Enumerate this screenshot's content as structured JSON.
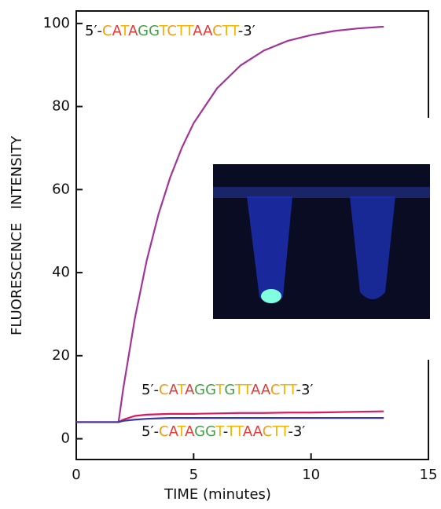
{
  "chart_data": {
    "type": "line",
    "xlabel": "TIME (minutes)",
    "ylabel": "FLUORESCENCE   INTENSITY",
    "x": [
      0,
      0.5,
      1,
      1.5,
      1.8,
      2,
      2.5,
      3,
      3.5,
      4,
      4.5,
      5,
      6,
      7,
      8,
      9,
      10,
      11,
      12,
      13,
      13.1
    ],
    "series": [
      {
        "name": "5′-CATAGGTCTTAACTT-3′",
        "color": "#a0359a",
        "values": [
          4,
          4,
          4,
          4,
          4,
          12,
          29.1,
          42.9,
          54,
          62.9,
          70.1,
          76,
          84.4,
          89.9,
          93.5,
          95.8,
          97.2,
          98.2,
          98.8,
          99.2,
          99.2
        ]
      },
      {
        "name": "5′-CATAGGTGTTAACTT-3′",
        "color": "#d81b60",
        "values": [
          4,
          4,
          4,
          4,
          4,
          4.6,
          5.5,
          5.8,
          5.9,
          6,
          6,
          6,
          6.1,
          6.2,
          6.2,
          6.3,
          6.3,
          6.4,
          6.5,
          6.6,
          6.6
        ]
      },
      {
        "name": "5′-CATAGGT-TTAACTT-3′",
        "color": "#3a3aa0",
        "values": [
          4,
          4,
          4,
          4,
          4,
          4.3,
          4.6,
          4.8,
          4.9,
          5,
          5,
          5,
          5,
          5,
          5,
          5,
          5,
          5,
          5,
          5,
          5
        ]
      }
    ],
    "base_colors": {
      "A": "#e53935",
      "C": "#f39c12",
      "G": "#43a047",
      "T": "#f4b400"
    },
    "xlim": [
      0,
      15
    ],
    "xticks": [
      0,
      5,
      10,
      15
    ],
    "ylim": [
      -5,
      103
    ],
    "yticks": [
      0,
      20,
      40,
      60,
      80,
      100
    ]
  }
}
